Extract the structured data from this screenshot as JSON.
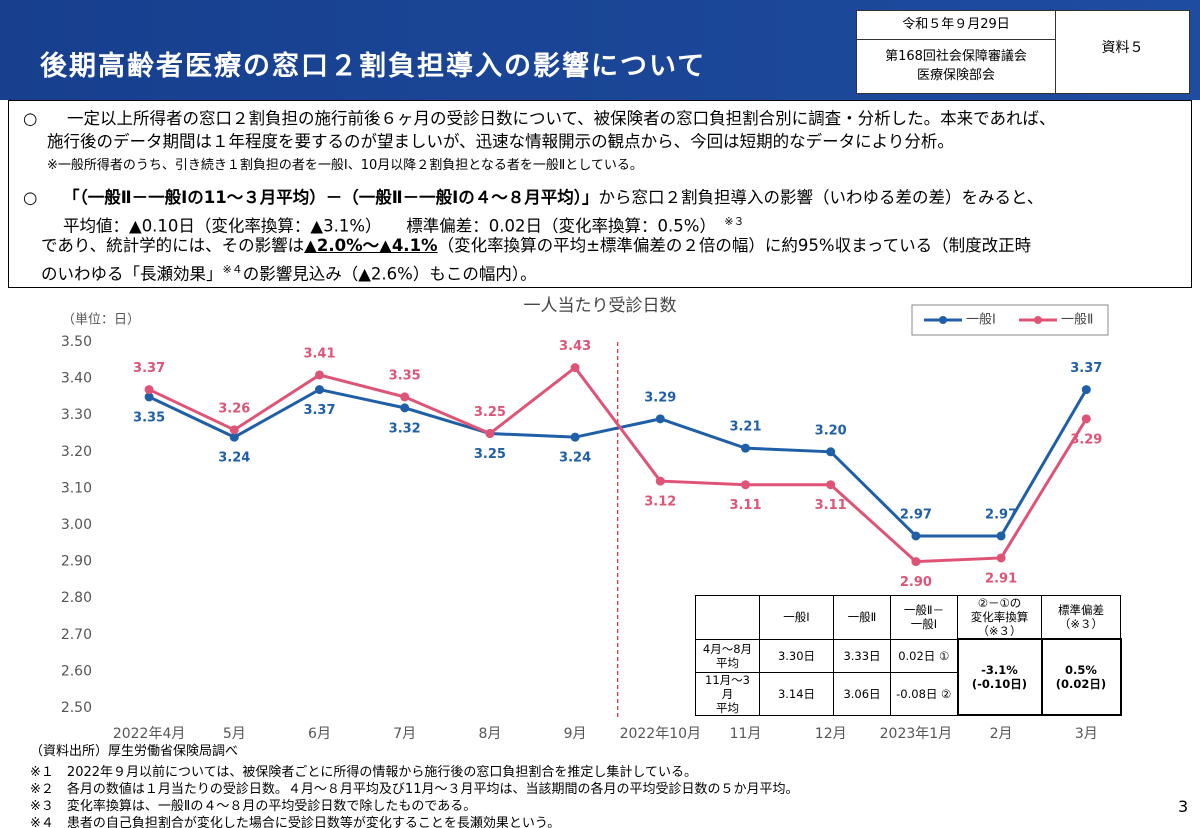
{
  "header": {
    "title": "後期高齢者医療の窓口２割負担導入の影響について",
    "date": "令和５年９月29日",
    "meeting": [
      "第168回社会保障審議会",
      "医療保険部会"
    ],
    "document_no": "資料５"
  },
  "summary": {
    "bullet": "○",
    "item1": {
      "lines": [
        "一定以上所得者の窓口２割負担の施行前後６ヶ月の受診日数について、被保険者の窓口負担割合別に調査・分析した。本来であれば、",
        "施行後のデータ期間は１年程度を要するのが望ましいが、迅速な情報開示の観点から、今回は短期的なデータにより分析。"
      ],
      "note": "※一般所得者のうち、引き続き１割負担の者を一般Ⅰ、10月以降２割負担となる者を一般Ⅱとしている。"
    },
    "item2": {
      "lead": "「（一般Ⅱ－一般Ⅰの11～３月平均）－（一般Ⅱ－一般Ⅰの４～８月平均）」",
      "lead_rest": "から窓口２割負担導入の影響（いわゆる差の差）をみると、",
      "stats": "平均値：▲0.10日（変化率換算：▲3.1%）　　標準偏差：0.02日（変化率換算：0.5%）",
      "stats_ref": "※３",
      "line3_a": "であり、統計学的には、その影響は",
      "line3_bold": "▲2.0%～▲4.1%",
      "line3_b": "（変化率換算の平均±標準偏差の２倍の幅）に約95%収まっている（制度改正時",
      "line4_a": "のいわゆる「長瀬効果」",
      "line4_ref": "※４",
      "line4_b": "の影響見込み（▲2.6%）もこの幅内）。"
    }
  },
  "chart_data": {
    "type": "line",
    "title": "一人当たり受診日数",
    "unit_label": "（単位：日）",
    "categories": [
      "2022年4月",
      "5月",
      "6月",
      "7月",
      "8月",
      "9月",
      "2022年10月",
      "11月",
      "12月",
      "2023年1月",
      "2月",
      "3月"
    ],
    "series": [
      {
        "name": "一般Ⅰ",
        "color": "#1f5fa8",
        "values": [
          3.35,
          3.24,
          3.37,
          3.32,
          3.25,
          3.24,
          3.29,
          3.21,
          3.2,
          2.97,
          2.97,
          3.37
        ],
        "value_labels": [
          "3.35",
          "3.24",
          "3.37",
          "3.32",
          "3.25",
          "3.24",
          "3.29",
          "3.21",
          "3.20",
          "2.97",
          "2.97",
          "3.37"
        ]
      },
      {
        "name": "一般Ⅱ",
        "color": "#df5476",
        "values": [
          3.37,
          3.26,
          3.41,
          3.35,
          3.25,
          3.43,
          3.12,
          3.11,
          3.11,
          2.9,
          2.91,
          3.29
        ],
        "value_labels": [
          "3.37",
          "3.26",
          "3.41",
          "3.35",
          "3.25",
          "3.43",
          "3.12",
          "3.11",
          "3.11",
          "2.90",
          "2.91",
          "3.29"
        ]
      }
    ],
    "ylim": [
      2.5,
      3.5
    ],
    "yticks": [
      {
        "value": 2.5,
        "label": "2.50"
      },
      {
        "value": 2.6,
        "label": "2.60"
      },
      {
        "value": 2.7,
        "label": "2.70"
      },
      {
        "value": 2.8,
        "label": "2.80"
      },
      {
        "value": 2.9,
        "label": "2.90"
      },
      {
        "value": 3.0,
        "label": "3.00"
      },
      {
        "value": 3.1,
        "label": "3.10"
      },
      {
        "value": 3.2,
        "label": "3.20"
      },
      {
        "value": 3.3,
        "label": "3.30"
      },
      {
        "value": 3.4,
        "label": "3.40"
      },
      {
        "value": 3.5,
        "label": "3.50"
      }
    ],
    "grid": false,
    "legend": "top-right"
  },
  "table": {
    "columns": [
      "一般Ⅰ",
      "一般Ⅱ",
      "一般Ⅱ－\n一般Ⅰ",
      "②－①の\n変化率換算\n（※３）",
      "標準偏差\n（※３）"
    ],
    "rows": [
      {
        "label": "4月～8月\n平均",
        "values": [
          "3.30日",
          "3.33日",
          "0.02日 ①"
        ]
      },
      {
        "label": "11月～3月\n平均",
        "values": [
          "3.14日",
          "3.06日",
          "-0.08日 ②"
        ]
      }
    ],
    "change_rate": "-3.1%\n(-0.10日)",
    "std_dev": "0.5%\n(0.02日)"
  },
  "source": "（資料出所）厚生労働省保険局調べ",
  "notes": [
    {
      "mark": "※１",
      "text": "2022年９月以前については、被保険者ごとに所得の情報から施行後の窓口負担割合を推定し集計している。"
    },
    {
      "mark": "※２",
      "text": "各月の数値は１月当たりの受診日数。４月～８月平均及び11月～３月平均は、当該期間の各月の平均受診日数の５か月平均。"
    },
    {
      "mark": "※３",
      "text": "変化率換算は、一般Ⅱの４～８月の平均受診日数で除したものである。"
    },
    {
      "mark": "※４",
      "text": "患者の自己負担割合が変化した場合に受診日数等が変化することを長瀬効果という。"
    }
  ],
  "page_number": "3"
}
